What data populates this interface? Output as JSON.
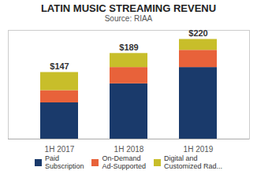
{
  "chart_data": {
    "type": "bar",
    "stacked": true,
    "title": "LATIN MUSIC STREAMING REVENU",
    "subtitle": "Source: RIAA",
    "categories": [
      "1H 2017",
      "1H 2018",
      "1H 2019"
    ],
    "series": [
      {
        "name": "Paid\nSubscription",
        "color": "#1a3a6b",
        "values": [
          80,
          122,
          158
        ]
      },
      {
        "name": "On-Demand\nAd-Supported",
        "color": "#e8623a",
        "values": [
          27,
          36,
          38
        ]
      },
      {
        "name": "Digital and\nCustomized Rad...",
        "color": "#c8be2a",
        "values": [
          40,
          31,
          24
        ]
      }
    ],
    "annotations": [
      {
        "label": "$147",
        "category": "1H 2017",
        "value": 147
      },
      {
        "label": "$189",
        "category": "1H 2018",
        "value": 189
      },
      {
        "label": "$220",
        "category": "1H 2019",
        "value": 220
      }
    ],
    "ylim": [
      0,
      240
    ],
    "tick_labels": "x",
    "grid": false,
    "legend": "bottom"
  }
}
